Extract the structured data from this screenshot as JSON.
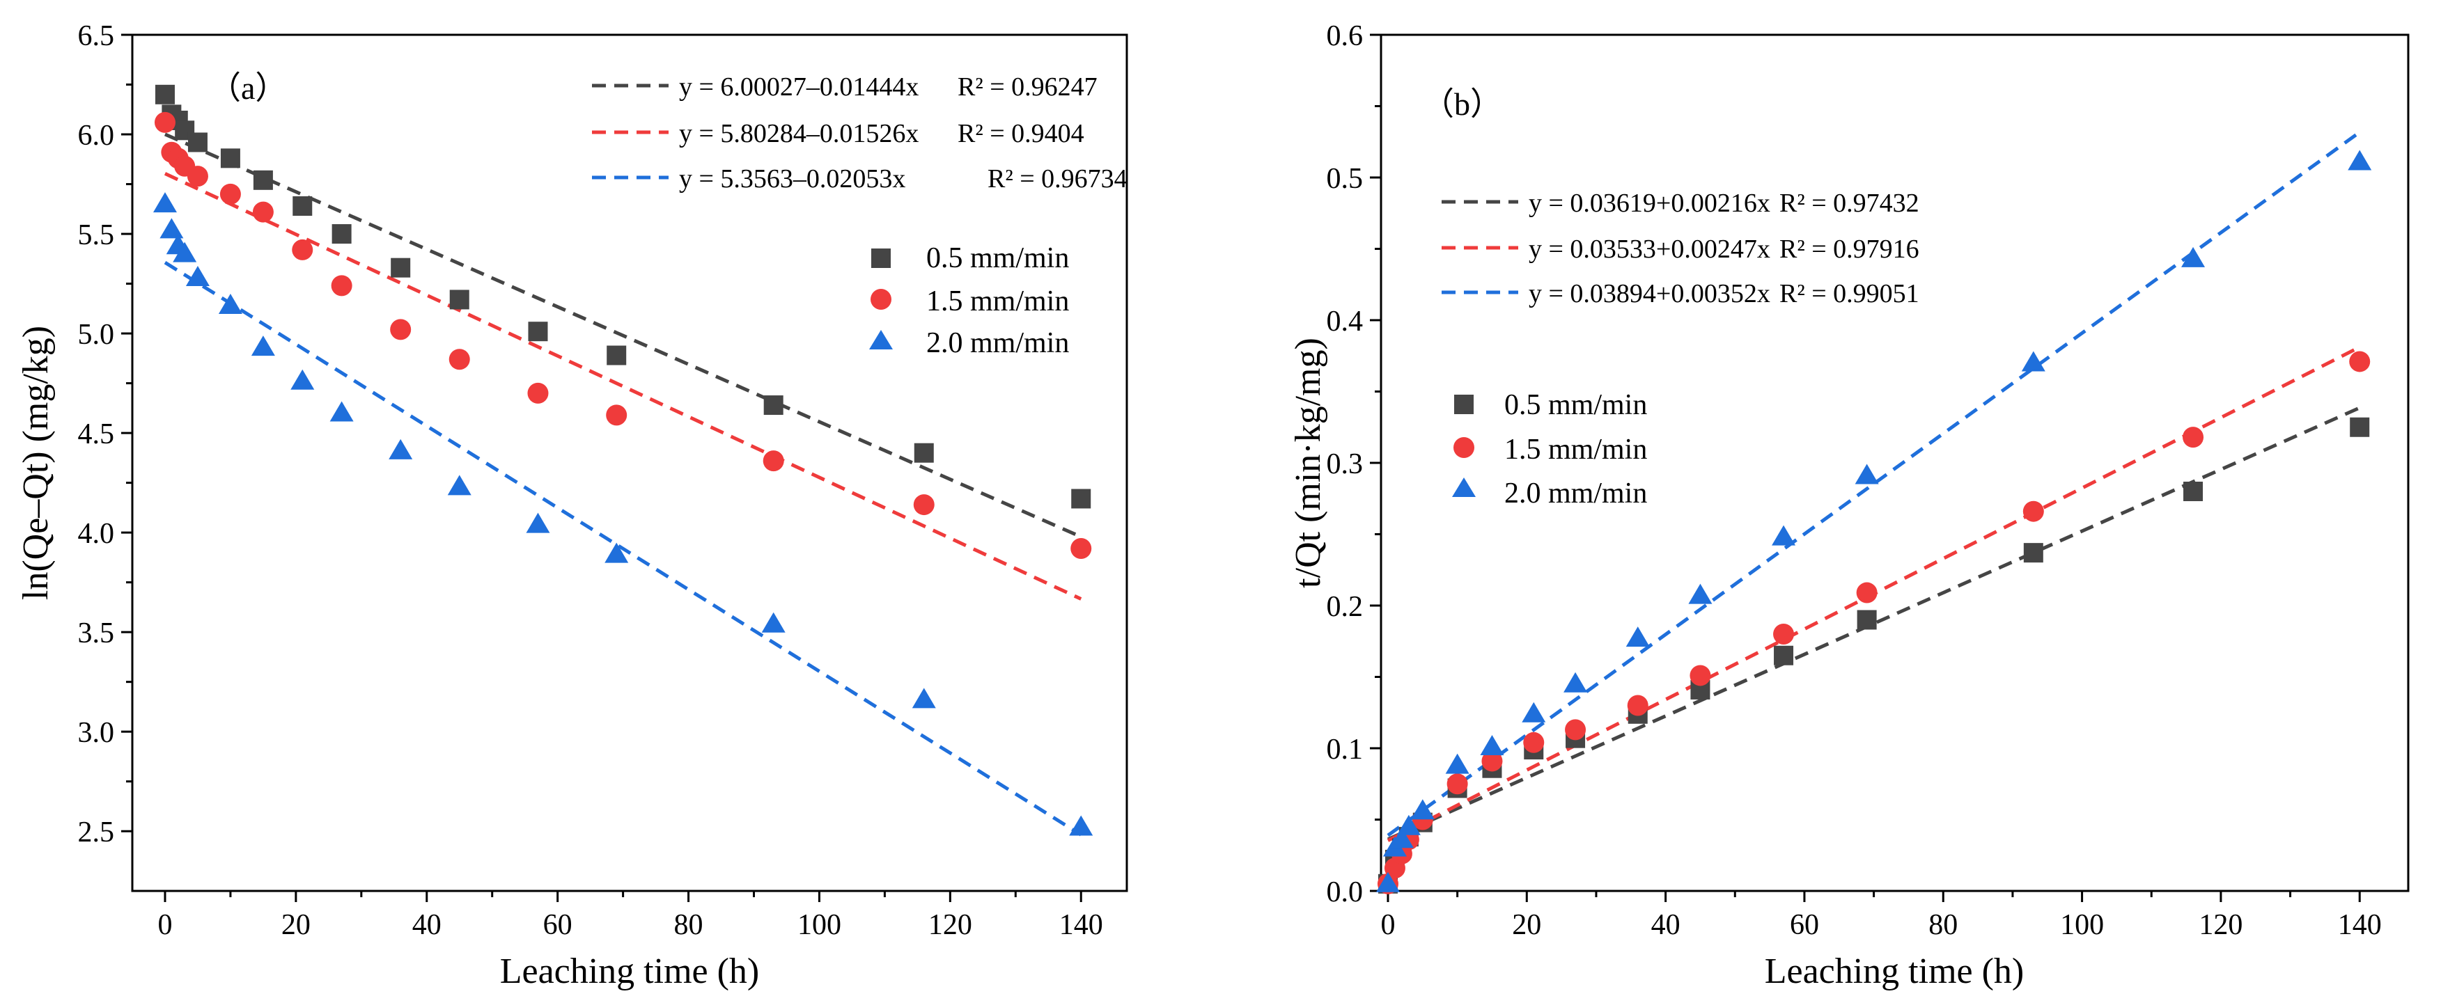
{
  "colors": {
    "black": "#454545",
    "red": "#ef3b3b",
    "blue": "#1f6fdb"
  },
  "chart_data": [
    {
      "type": "scatter",
      "panel_label": "（a）",
      "xlabel": "Leaching time (h)",
      "ylabel": "ln(Qe–Qt) (mg/kg)",
      "xlim": [
        -5,
        147
      ],
      "ylim": [
        2.2,
        6.5
      ],
      "xticks": [
        0,
        20,
        40,
        60,
        80,
        100,
        120,
        140
      ],
      "xtick_labels": [
        "0",
        "20",
        "40",
        "60",
        "80",
        "100",
        "120",
        "140"
      ],
      "yticks": [
        2.5,
        3.0,
        3.5,
        4.0,
        4.5,
        5.0,
        5.5,
        6.0,
        6.5
      ],
      "ytick_labels": [
        "2.5",
        "3.0",
        "3.5",
        "4.0",
        "4.5",
        "5.0",
        "5.5",
        "6.0",
        "6.5"
      ],
      "legend_position": "right",
      "series": [
        {
          "name": "0.5 mm/min",
          "marker": "square",
          "color": "#454545",
          "x": [
            0,
            1,
            2,
            3,
            5,
            10,
            15,
            21,
            27,
            36,
            45,
            57,
            69,
            93,
            116,
            140
          ],
          "y": [
            6.2,
            6.1,
            6.07,
            6.02,
            5.96,
            5.88,
            5.77,
            5.64,
            5.5,
            5.33,
            5.17,
            5.01,
            4.89,
            4.64,
            4.4,
            4.17
          ],
          "fit": {
            "intercept": 6.00027,
            "slope": -0.01444,
            "x_range": [
              0,
              140
            ],
            "label": "y = 6.00027–0.01444x",
            "r2_label": "R² = 0.96247"
          }
        },
        {
          "name": "1.5 mm/min",
          "marker": "circle",
          "color": "#ef3b3b",
          "x": [
            0,
            1,
            2,
            3,
            5,
            10,
            15,
            21,
            27,
            36,
            45,
            57,
            69,
            93,
            116,
            140
          ],
          "y": [
            6.06,
            5.91,
            5.88,
            5.84,
            5.79,
            5.7,
            5.61,
            5.42,
            5.24,
            5.02,
            4.87,
            4.7,
            4.59,
            4.36,
            4.14,
            3.92
          ],
          "fit": {
            "intercept": 5.80284,
            "slope": -0.01526,
            "x_range": [
              0,
              140
            ],
            "label": "y = 5.80284–0.01526x",
            "r2_label": "R² = 0.9404"
          }
        },
        {
          "name": "2.0 mm/min",
          "marker": "triangle",
          "color": "#1f6fdb",
          "x": [
            0,
            1,
            2,
            3,
            5,
            10,
            15,
            21,
            27,
            36,
            45,
            57,
            69,
            93,
            116,
            140
          ],
          "y": [
            5.65,
            5.52,
            5.44,
            5.4,
            5.28,
            5.14,
            4.93,
            4.76,
            4.6,
            4.41,
            4.23,
            4.04,
            3.89,
            3.54,
            3.16,
            2.52
          ],
          "fit": {
            "intercept": 5.3563,
            "slope": -0.02053,
            "x_range": [
              0,
              140
            ],
            "label": "y = 5.3563–0.02053x",
            "r2_label": "R² = 0.96734"
          }
        }
      ]
    },
    {
      "type": "scatter",
      "panel_label": "（b）",
      "xlabel": "Leaching time (h)",
      "ylabel": "t/Qt (min·kg/mg)",
      "xlim": [
        -1,
        147
      ],
      "ylim": [
        0,
        0.6
      ],
      "xticks": [
        0,
        20,
        40,
        60,
        80,
        100,
        120,
        140
      ],
      "xtick_labels": [
        "0",
        "20",
        "40",
        "60",
        "80",
        "100",
        "120",
        "140"
      ],
      "yticks": [
        0,
        0.1,
        0.2,
        0.3,
        0.4,
        0.5,
        0.6
      ],
      "ytick_labels": [
        "0.0",
        "0.1",
        "0.2",
        "0.3",
        "0.4",
        "0.5",
        "0.6"
      ],
      "legend_position": "left",
      "series": [
        {
          "name": "0.5 mm/min",
          "marker": "square",
          "color": "#454545",
          "x": [
            0,
            1,
            2,
            3,
            5,
            10,
            15,
            21,
            27,
            36,
            45,
            57,
            69,
            93,
            116,
            140
          ],
          "y": [
            0.005,
            0.022,
            0.03,
            0.038,
            0.048,
            0.072,
            0.086,
            0.099,
            0.107,
            0.124,
            0.141,
            0.165,
            0.19,
            0.237,
            0.28,
            0.325
          ],
          "fit": {
            "intercept": 0.03619,
            "slope": 0.00216,
            "x_range": [
              0,
              140
            ],
            "label": "y = 0.03619+0.00216x",
            "r2_label": "R² = 0.97432"
          }
        },
        {
          "name": "1.5 mm/min",
          "marker": "circle",
          "color": "#ef3b3b",
          "x": [
            0,
            1,
            2,
            3,
            5,
            10,
            15,
            21,
            27,
            36,
            45,
            57,
            69,
            93,
            116,
            140
          ],
          "y": [
            0.005,
            0.016,
            0.026,
            0.036,
            0.05,
            0.075,
            0.091,
            0.104,
            0.113,
            0.13,
            0.151,
            0.18,
            0.209,
            0.266,
            0.318,
            0.371
          ],
          "fit": {
            "intercept": 0.03533,
            "slope": 0.00247,
            "x_range": [
              0,
              140
            ],
            "label": "y = 0.03533+0.00247x",
            "r2_label": "R² = 0.97916"
          }
        },
        {
          "name": "2.0 mm/min",
          "marker": "triangle",
          "color": "#1f6fdb",
          "x": [
            0,
            1,
            2,
            3,
            5,
            10,
            15,
            21,
            27,
            36,
            45,
            57,
            69,
            93,
            116,
            140
          ],
          "y": [
            0.005,
            0.03,
            0.036,
            0.045,
            0.056,
            0.088,
            0.101,
            0.124,
            0.145,
            0.177,
            0.207,
            0.248,
            0.291,
            0.37,
            0.443,
            0.511
          ],
          "fit": {
            "intercept": 0.03894,
            "slope": 0.00352,
            "x_range": [
              0,
              140
            ],
            "label": "y = 0.03894+0.00352x",
            "r2_label": "R² = 0.99051"
          }
        }
      ]
    }
  ]
}
